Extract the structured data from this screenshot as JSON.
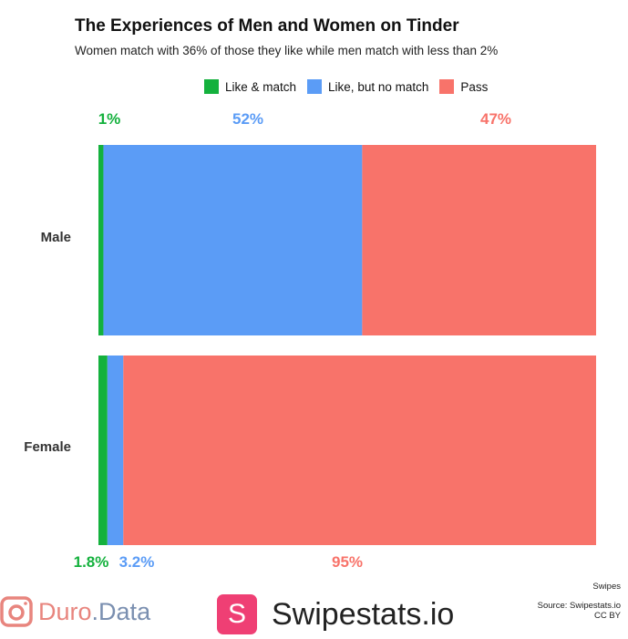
{
  "header": {
    "title": "The Experiences of Men and Women on Tinder",
    "subtitle": "Women match with 36% of those they like while men match with less than 2%"
  },
  "legend": [
    {
      "label": "Like & match",
      "color": "#14b13d"
    },
    {
      "label": "Like, but no match",
      "color": "#5b9cf6"
    },
    {
      "label": "Pass",
      "color": "#f8736a"
    }
  ],
  "chart_data": {
    "type": "bar",
    "orientation": "horizontal",
    "stacked": true,
    "title": "The Experiences of Men and Women on Tinder",
    "subtitle": "Women match with 36% of those they like while men match with less than 2%",
    "categories": [
      "Male",
      "Female"
    ],
    "series": [
      {
        "name": "Like & match",
        "color": "#14b13d",
        "values": [
          1,
          1.8
        ],
        "labels": [
          "1%",
          "1.8%"
        ]
      },
      {
        "name": "Like, but no match",
        "color": "#5b9cf6",
        "values": [
          52,
          3.2
        ],
        "labels": [
          "52%",
          "3.2%"
        ]
      },
      {
        "name": "Pass",
        "color": "#f8736a",
        "values": [
          47,
          95
        ],
        "labels": [
          "47%",
          "95%"
        ]
      }
    ],
    "xlim": [
      0,
      100
    ],
    "legend_position": "top",
    "grid": false
  },
  "footer": {
    "caption": "Swipes",
    "source": "Source: Swipestats.io",
    "license": "CC BY",
    "brand1_part1": "Duro",
    "brand1_dot": ".",
    "brand1_part2": "Data",
    "brand2_badge": "S",
    "brand2_name": "Swipestats.io"
  }
}
